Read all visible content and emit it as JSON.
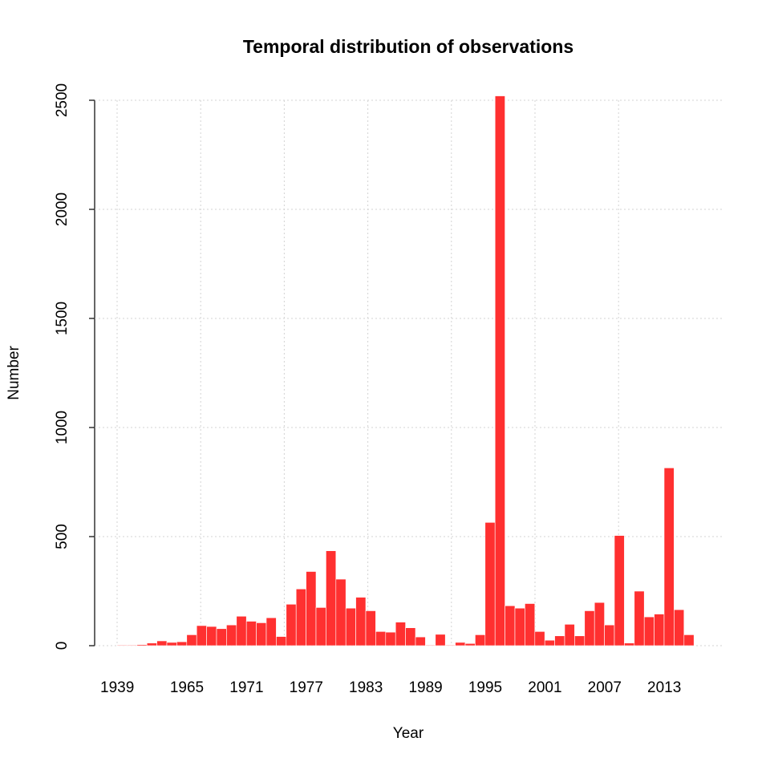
{
  "chart_data": {
    "type": "bar",
    "title": "Temporal distribution of observations",
    "x_label": "Year",
    "y_label": "Number",
    "color": "#ff3030",
    "grid": true,
    "categories": [
      "1939",
      null,
      null,
      null,
      null,
      null,
      null,
      "1965",
      null,
      null,
      null,
      null,
      null,
      "1971",
      null,
      null,
      null,
      null,
      null,
      "1977",
      null,
      null,
      null,
      null,
      null,
      "1983",
      null,
      null,
      null,
      null,
      null,
      "1989",
      null,
      null,
      null,
      null,
      null,
      "1995",
      null,
      null,
      null,
      null,
      null,
      "2001",
      null,
      null,
      null,
      null,
      null,
      "2007",
      null,
      null,
      null,
      null,
      null,
      "2013",
      null,
      null
    ],
    "values": [
      3,
      3,
      5,
      12,
      22,
      15,
      18,
      50,
      92,
      88,
      78,
      95,
      135,
      112,
      105,
      128,
      42,
      190,
      260,
      340,
      175,
      435,
      305,
      172,
      222,
      160,
      65,
      62,
      108,
      82,
      40,
      3,
      52,
      3,
      15,
      10,
      50,
      565,
      2520,
      183,
      172,
      193,
      65,
      25,
      45,
      98,
      45,
      160,
      198,
      95,
      505,
      12,
      250,
      132,
      145,
      815,
      165,
      50
    ],
    "ylim": [
      0,
      2500
    ],
    "yticks": [
      0,
      500,
      1000,
      1500,
      2000,
      2500
    ]
  }
}
